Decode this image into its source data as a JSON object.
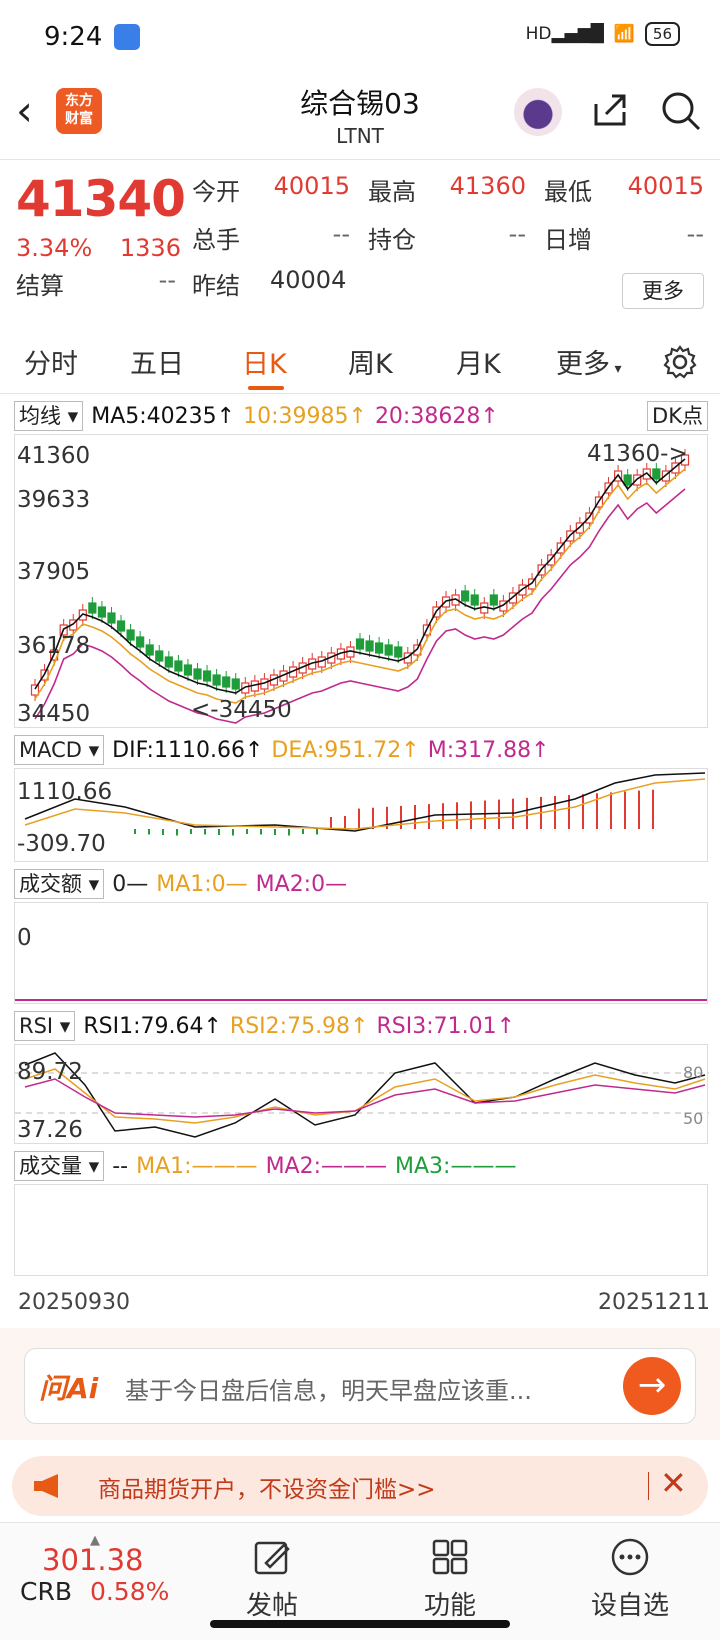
{
  "status": {
    "time": "9:24",
    "net": "HD",
    "battery": "56"
  },
  "header": {
    "title": "综合锡03",
    "subtitle": "LTNT",
    "logo_l1": "东方",
    "logo_l2": "财富"
  },
  "quote": {
    "price": "41340",
    "pct": "3.34%",
    "change": "1336",
    "fields": [
      {
        "label": "今开",
        "value": "40015"
      },
      {
        "label": "最高",
        "value": "41360"
      },
      {
        "label": "最低",
        "value": "40015"
      },
      {
        "label": "总手",
        "value": "--"
      },
      {
        "label": "持仓",
        "value": "--"
      },
      {
        "label": "日增",
        "value": "--"
      },
      {
        "label": "结算",
        "value": "--"
      },
      {
        "label": "昨结",
        "value": "40004"
      }
    ],
    "more_label": "更多"
  },
  "tabs": [
    "分时",
    "五日",
    "日K",
    "周K",
    "月K",
    "更多"
  ],
  "kline": {
    "selector": "均线",
    "ma5": "MA5:40235",
    "ma10": "10:39985",
    "ma20": "20:38628",
    "dk": "DK点",
    "y_labels": [
      "41360",
      "39633",
      "37905",
      "36178",
      "34450"
    ],
    "high_note": "41360->",
    "low_note": "<-34450",
    "colors": {
      "up": "#e03a32",
      "down": "#1f9d3b",
      "ma5": "#111111",
      "ma10": "#e8a020",
      "ma20": "#c02a8e"
    }
  },
  "macd": {
    "selector": "MACD",
    "dif": "DIF:1110.66",
    "dea": "DEA:951.72",
    "m": "M:317.88",
    "y_top": "1110.66",
    "y_bottom": "-309.70"
  },
  "turnover": {
    "selector": "成交额",
    "val": "0—",
    "ma1": "MA1:0—",
    "ma2": "MA2:0—",
    "y_label": "0"
  },
  "rsi": {
    "selector": "RSI",
    "rsi1": "RSI1:79.64",
    "rsi2": "RSI2:75.98",
    "rsi3": "RSI3:71.01",
    "y_top": "89.72",
    "y_bottom": "37.26",
    "ref80": "80",
    "ref50": "50"
  },
  "volume": {
    "selector": "成交量",
    "val": "--",
    "ma1": "MA1:———",
    "ma2": "MA2:———",
    "ma3": "MA3:———"
  },
  "dates": {
    "start": "20250930",
    "end": "20251211"
  },
  "ask": {
    "logo": "问Ai",
    "placeholder": "基于今日盘后信息，明天早盘应该重..."
  },
  "promo": {
    "text": "商品期货开户，不设资金门槛>>"
  },
  "bottom": {
    "crb_value": "301.38",
    "crb_label": "CRB",
    "crb_pct": "0.58%",
    "items": [
      "发帖",
      "功能",
      "设自选"
    ]
  }
}
